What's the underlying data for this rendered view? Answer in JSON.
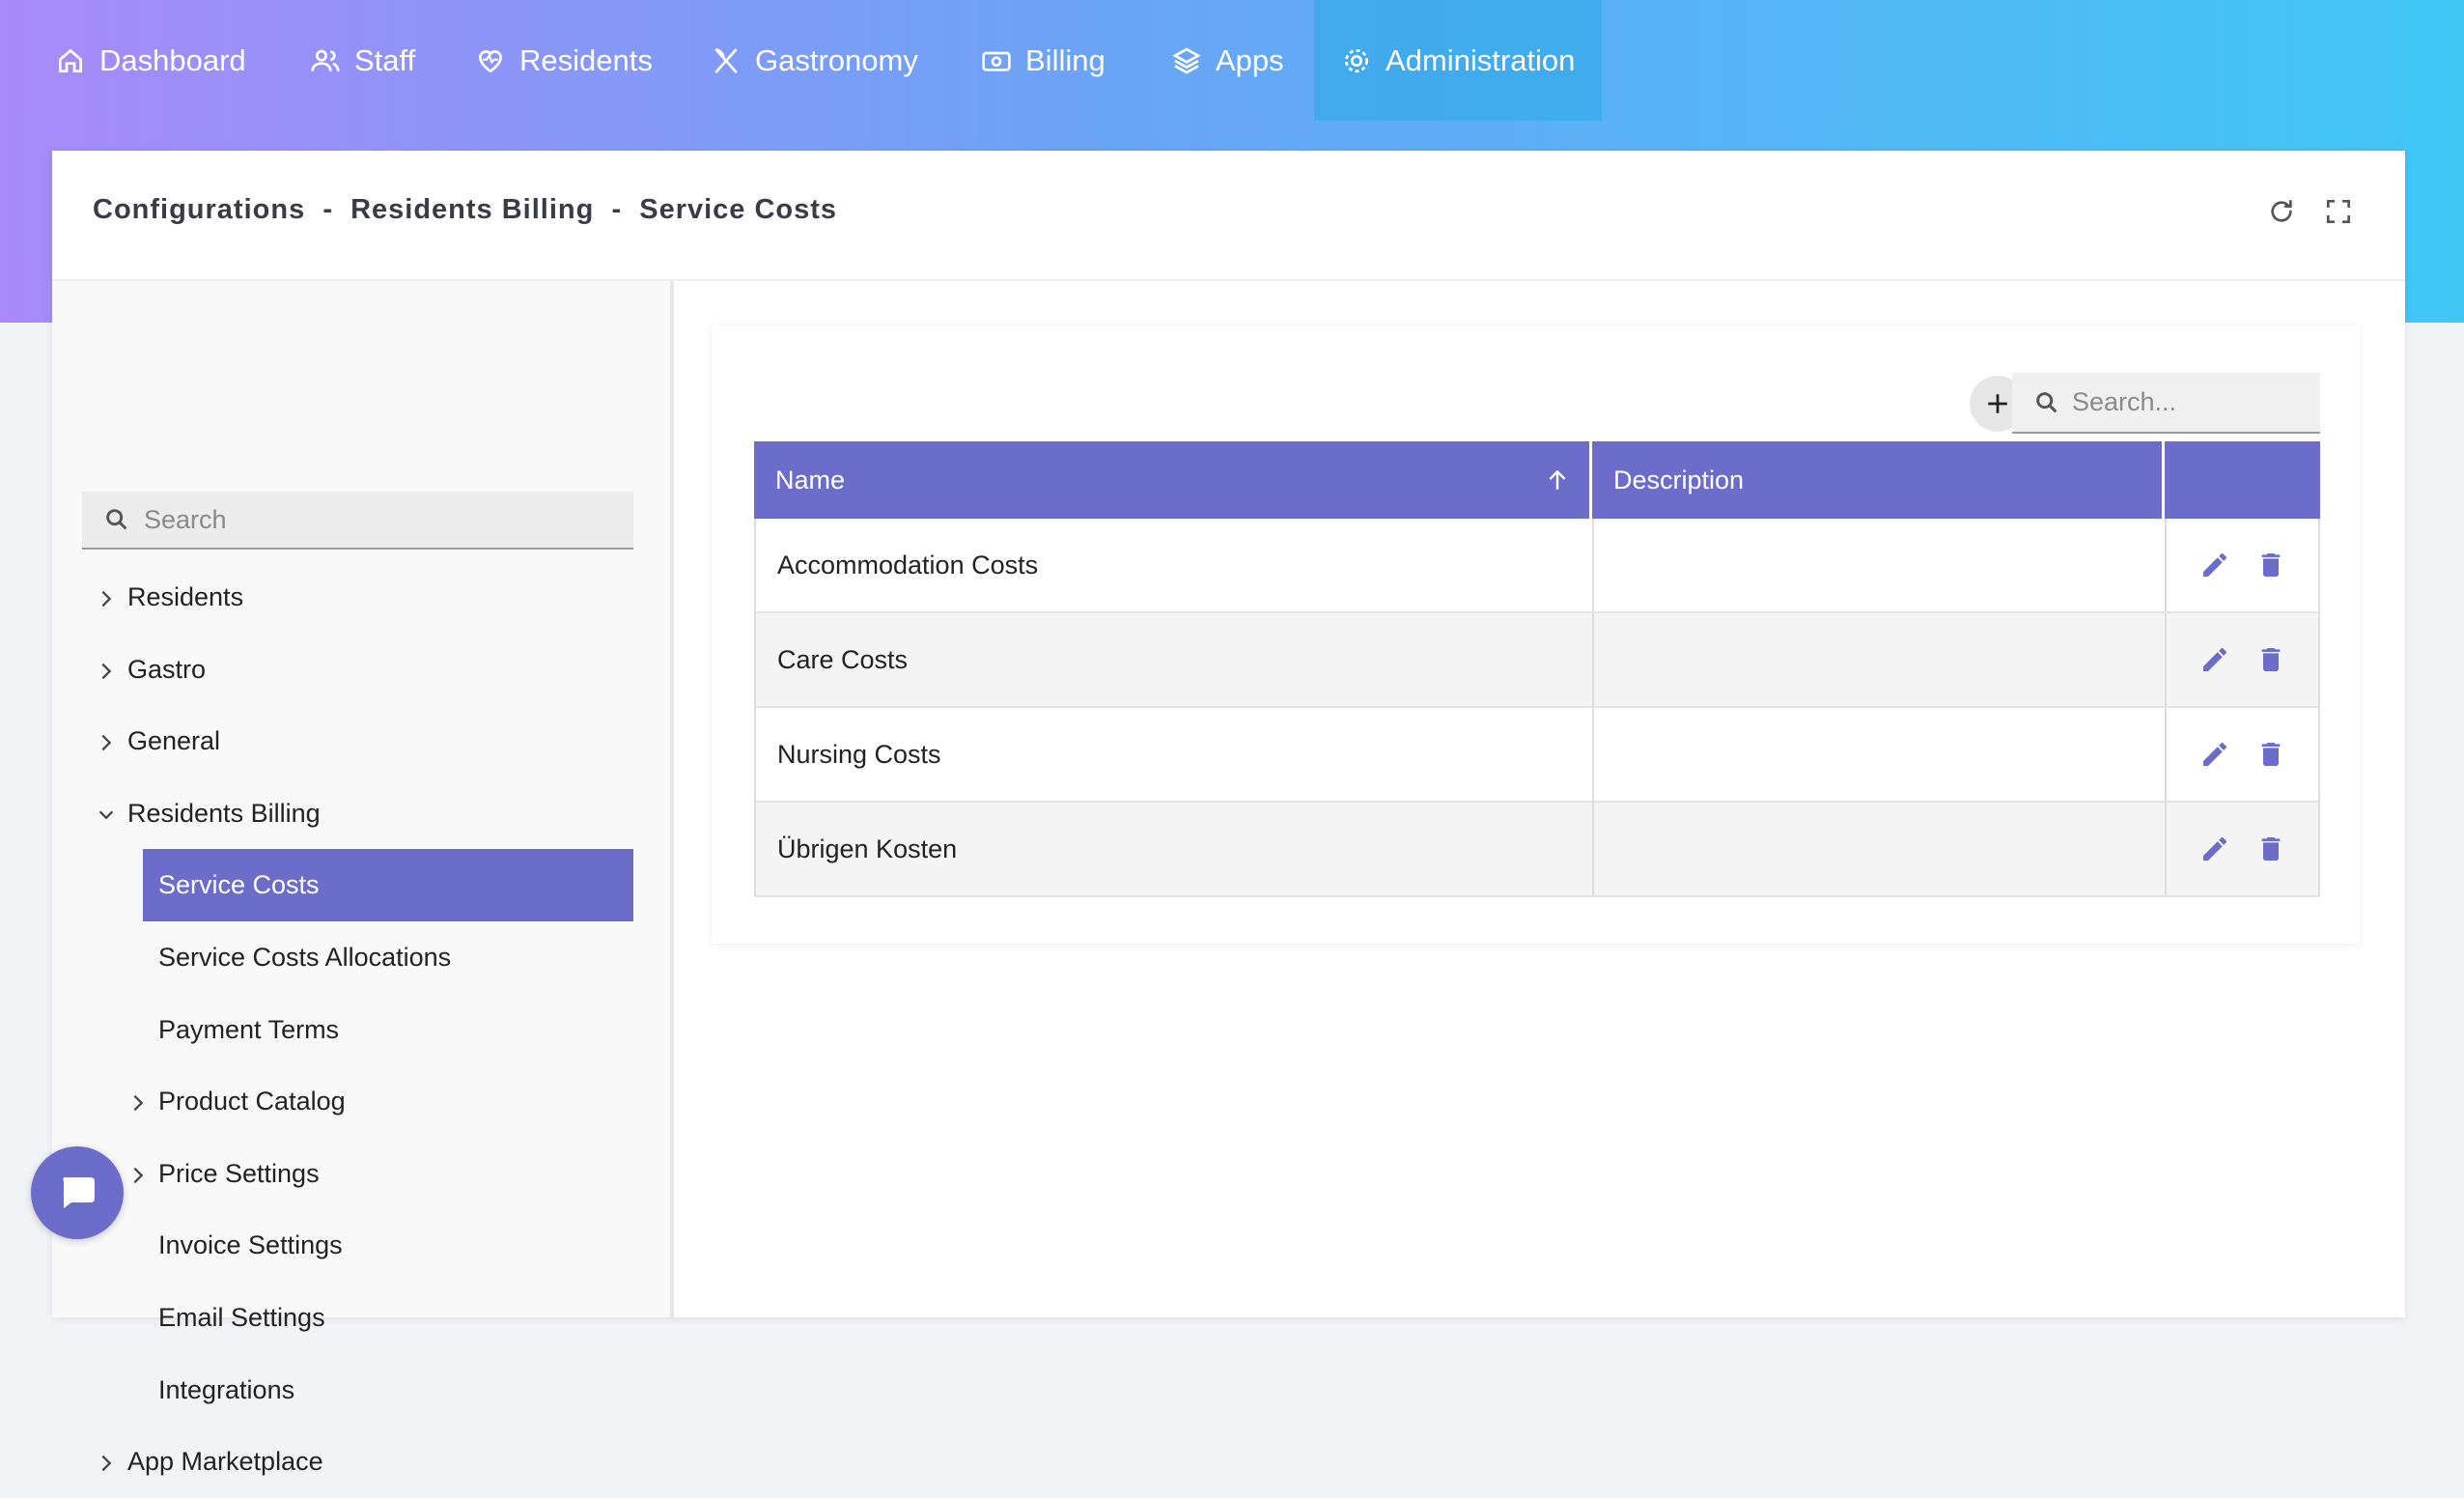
{
  "nav": {
    "items": [
      {
        "label": "Dashboard",
        "icon": "home"
      },
      {
        "label": "Staff",
        "icon": "people"
      },
      {
        "label": "Residents",
        "icon": "heart"
      },
      {
        "label": "Gastronomy",
        "icon": "cutlery"
      },
      {
        "label": "Billing",
        "icon": "money"
      },
      {
        "label": "Apps",
        "icon": "layers"
      },
      {
        "label": "Administration",
        "icon": "gear",
        "active": true
      }
    ]
  },
  "header": {
    "title": "Configurations  -  Residents Billing  -  Service Costs"
  },
  "sidebar": {
    "search_placeholder": "Search",
    "tree": [
      {
        "label": "Residents",
        "level": 0,
        "chevron": "right"
      },
      {
        "label": "Gastro",
        "level": 0,
        "chevron": "right"
      },
      {
        "label": "General",
        "level": 0,
        "chevron": "right"
      },
      {
        "label": "Residents Billing",
        "level": 0,
        "chevron": "down"
      },
      {
        "label": "Service Costs",
        "level": 1,
        "selected": true
      },
      {
        "label": "Service Costs Allocations",
        "level": 1
      },
      {
        "label": "Payment Terms",
        "level": 1
      },
      {
        "label": "Product Catalog",
        "level": 1,
        "chevron": "right"
      },
      {
        "label": "Price Settings",
        "level": 1,
        "chevron": "right"
      },
      {
        "label": "Invoice Settings",
        "level": 1
      },
      {
        "label": "Email Settings",
        "level": 1
      },
      {
        "label": "Integrations",
        "level": 1
      },
      {
        "label": "App Marketplace",
        "level": 0,
        "chevron": "right"
      }
    ]
  },
  "table": {
    "search_placeholder": "Search...",
    "columns": [
      "Name",
      "Description"
    ],
    "rows": [
      {
        "name": "Accommodation Costs"
      },
      {
        "name": "Care Costs"
      },
      {
        "name": "Nursing Costs"
      },
      {
        "name": "Übrigen Kosten"
      }
    ]
  }
}
